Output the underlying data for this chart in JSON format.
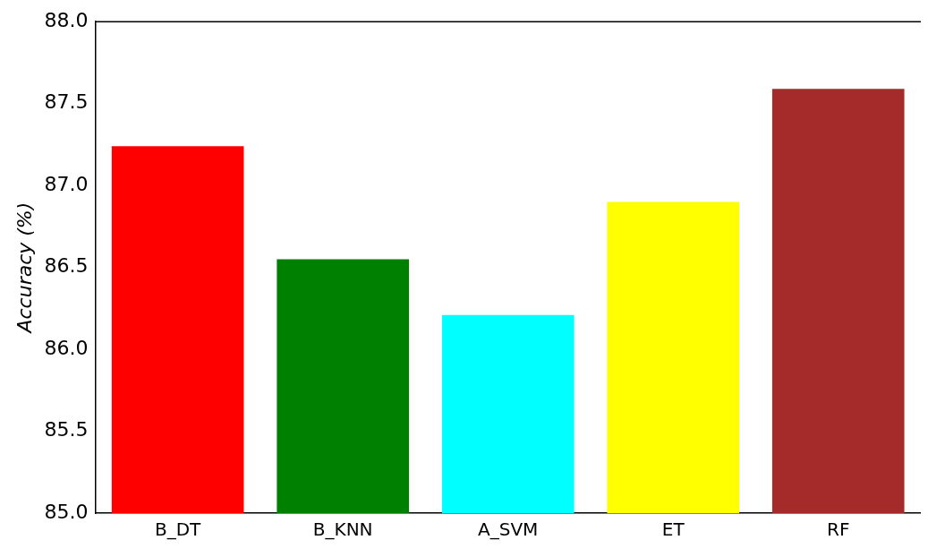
{
  "chart_data": {
    "type": "bar",
    "ylabel": "Accuracy (%)",
    "categories": [
      "B_DT",
      "B_KNN",
      "A_SVM",
      "ET",
      "RF"
    ],
    "values": [
      87.24,
      86.55,
      86.21,
      86.9,
      87.59
    ],
    "colors": [
      "#ff0000",
      "#008000",
      "#00ffff",
      "#ffff00",
      "#a52a2a"
    ],
    "ylim": [
      85,
      88
    ],
    "yticks": [
      {
        "value": 85,
        "label": "85.0"
      },
      {
        "value": 85.5,
        "label": "85.5"
      },
      {
        "value": 86,
        "label": "86.0"
      },
      {
        "value": 86.5,
        "label": "86.5"
      },
      {
        "value": 87,
        "label": "87.0"
      },
      {
        "value": 87.5,
        "label": "87.5"
      },
      {
        "value": 88,
        "label": "88.0"
      }
    ],
    "grid": false,
    "legend": false
  }
}
